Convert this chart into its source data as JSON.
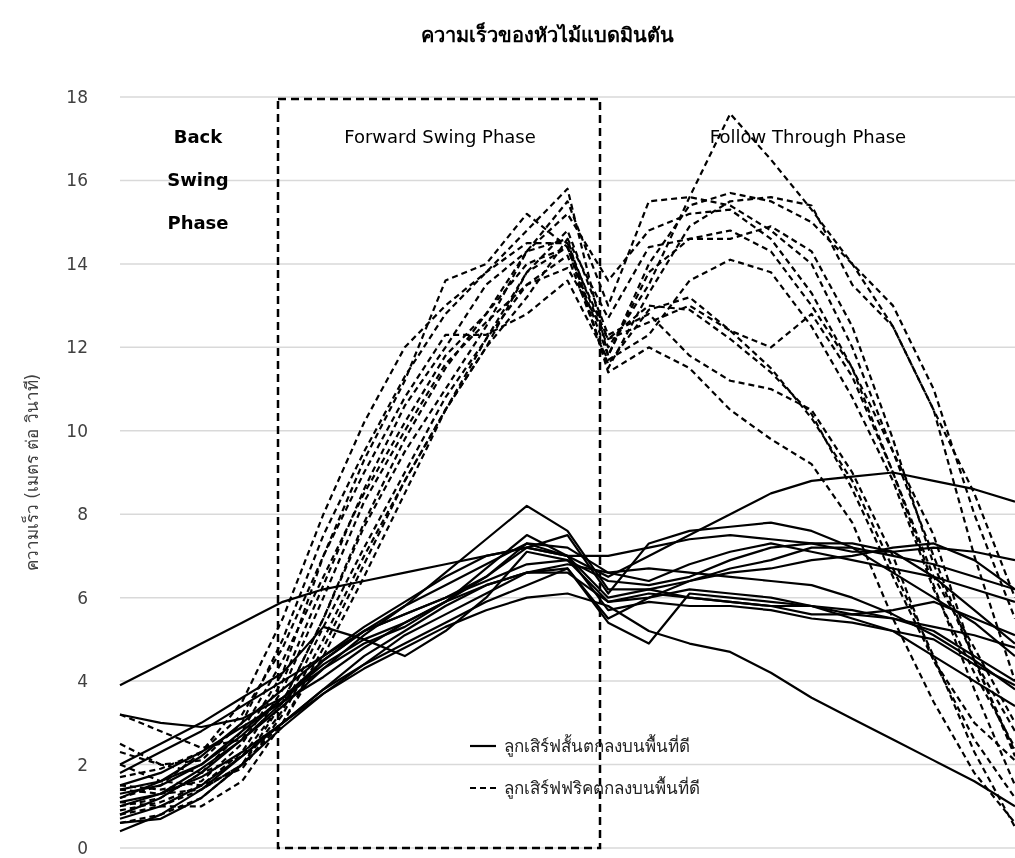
{
  "chart_data": {
    "type": "line",
    "title": "ความเร็วของหัวไม้แบดมินตัน",
    "ylabel": "ความเร็ว (เมตร ต่อ วินาที)",
    "categories": [
      null,
      null,
      null,
      null,
      null,
      null,
      null,
      null,
      null,
      null,
      null,
      null,
      null,
      null,
      null,
      null,
      null,
      null,
      null,
      null,
      null,
      null,
      null
    ],
    "ylim": [
      0,
      18
    ],
    "yticks": [
      0,
      2,
      4,
      6,
      8,
      10,
      12,
      14,
      16,
      18
    ],
    "grid": "y",
    "tick_labels": "y",
    "legend": "bottom",
    "marker": "none",
    "annotations": [
      "Back Swing Phase",
      "Forward Swing Phase",
      "Follow Through Phase"
    ],
    "series": [
      {
        "name": "ลูกเสิร์ฟสั้นตกลงบนพื้นที่ดี",
        "color": "#000000",
        "line_style": "solid",
        "values": [
          3.9,
          4.4,
          4.9,
          5.4,
          5.9,
          6.2,
          6.4,
          6.6,
          6.8,
          7.0,
          7.2,
          7.0,
          7.0,
          7.2,
          7.4,
          7.5,
          7.4,
          7.3,
          7.1,
          7.1,
          7.2,
          7.1,
          6.9
        ]
      },
      {
        "color": "#000000",
        "line_style": "solid",
        "values": [
          1.2,
          1.6,
          2.2,
          3.0,
          3.8,
          4.6,
          5.3,
          5.9,
          6.5,
          7.0,
          7.2,
          7.0,
          6.5,
          7.0,
          7.5,
          8.0,
          8.5,
          8.8,
          8.9,
          9.0,
          8.8,
          8.6,
          8.3
        ]
      },
      {
        "color": "#000000",
        "line_style": "solid",
        "values": [
          0.8,
          1.2,
          1.8,
          2.6,
          3.4,
          4.3,
          5.1,
          5.8,
          6.6,
          7.4,
          8.2,
          7.6,
          6.2,
          6.2,
          6.4,
          6.7,
          6.9,
          7.2,
          7.2,
          7.0,
          6.8,
          6.5,
          6.2
        ]
      },
      {
        "color": "#000000",
        "line_style": "solid",
        "values": [
          0.6,
          0.7,
          1.2,
          2.0,
          2.9,
          3.7,
          4.3,
          4.8,
          5.3,
          5.7,
          6.0,
          6.1,
          5.8,
          5.2,
          4.9,
          4.7,
          4.2,
          3.6,
          3.1,
          2.6,
          2.1,
          1.6,
          1.0
        ]
      },
      {
        "color": "#000000",
        "line_style": "solid",
        "values": [
          1.4,
          1.6,
          2.0,
          2.7,
          3.6,
          4.5,
          5.2,
          5.8,
          6.3,
          6.8,
          7.3,
          7.0,
          6.0,
          6.2,
          6.0,
          5.9,
          5.8,
          5.6,
          5.6,
          5.5,
          5.3,
          5.1,
          4.8
        ]
      },
      {
        "color": "#000000",
        "line_style": "solid",
        "values": [
          0.4,
          0.8,
          1.4,
          2.2,
          3.0,
          3.8,
          4.4,
          4.9,
          5.4,
          5.9,
          6.3,
          6.7,
          5.4,
          4.9,
          6.1,
          6.0,
          5.9,
          5.8,
          5.7,
          5.5,
          5.2,
          4.6,
          4.0
        ]
      },
      {
        "color": "#000000",
        "line_style": "solid",
        "values": [
          1.0,
          1.3,
          1.9,
          2.6,
          3.5,
          4.5,
          5.2,
          5.6,
          6.0,
          6.4,
          6.8,
          6.9,
          6.4,
          6.3,
          6.5,
          6.9,
          7.2,
          7.3,
          7.3,
          7.1,
          6.5,
          5.7,
          4.9
        ]
      },
      {
        "color": "#000000",
        "line_style": "solid",
        "values": [
          1.8,
          2.3,
          2.8,
          3.4,
          4.0,
          4.6,
          5.2,
          5.6,
          6.0,
          6.5,
          7.2,
          7.5,
          6.1,
          7.3,
          7.6,
          7.7,
          7.8,
          7.6,
          7.2,
          6.6,
          6.0,
          5.4,
          4.6
        ]
      },
      {
        "color": "#000000",
        "line_style": "solid",
        "values": [
          2.0,
          2.5,
          3.0,
          3.6,
          4.2,
          5.3,
          5.0,
          4.6,
          5.2,
          6.0,
          7.1,
          6.9,
          5.9,
          6.0,
          6.2,
          6.1,
          6.0,
          5.8,
          5.5,
          5.2,
          4.6,
          4.0,
          3.4
        ]
      },
      {
        "color": "#000000",
        "line_style": "solid",
        "values": [
          1.3,
          1.5,
          2.0,
          2.8,
          3.6,
          4.3,
          4.9,
          5.3,
          5.9,
          6.7,
          7.5,
          7.0,
          5.7,
          5.9,
          5.8,
          5.8,
          5.7,
          5.5,
          5.4,
          5.2,
          5.0,
          4.4,
          3.9
        ]
      },
      {
        "color": "#000000",
        "line_style": "solid",
        "values": [
          0.7,
          1.0,
          1.5,
          2.2,
          3.0,
          3.8,
          4.6,
          5.2,
          5.8,
          6.3,
          6.6,
          6.8,
          6.6,
          6.7,
          6.6,
          6.5,
          6.4,
          6.3,
          6.0,
          5.6,
          5.1,
          4.5,
          3.8
        ]
      },
      {
        "color": "#000000",
        "line_style": "solid",
        "values": [
          1.5,
          1.8,
          2.3,
          2.9,
          3.5,
          4.1,
          4.8,
          5.4,
          5.9,
          6.3,
          6.6,
          6.6,
          5.9,
          6.1,
          6.0,
          5.9,
          5.8,
          5.8,
          5.6,
          5.7,
          5.9,
          5.5,
          5.1
        ]
      },
      {
        "color": "#000000",
        "line_style": "solid",
        "values": [
          3.2,
          3.0,
          2.9,
          3.1,
          3.6,
          4.4,
          5.0,
          5.4,
          5.9,
          6.5,
          7.3,
          7.2,
          6.6,
          6.4,
          6.8,
          7.1,
          7.3,
          7.1,
          6.9,
          6.7,
          6.5,
          6.2,
          5.9
        ]
      },
      {
        "color": "#000000",
        "line_style": "solid",
        "values": [
          1.1,
          1.3,
          1.7,
          2.3,
          3.0,
          3.7,
          4.4,
          5.1,
          5.6,
          6.1,
          6.6,
          6.7,
          5.5,
          6.0,
          6.4,
          6.6,
          6.7,
          6.9,
          7.0,
          7.2,
          7.3,
          6.9,
          6.2
        ]
      },
      {
        "name": "ลูกเสิร์ฟฟริคตกลงบนพื้นที่ดี",
        "color": "#000000",
        "line_style": "dashed",
        "values": [
          1.2,
          1.5,
          2.3,
          3.5,
          5.5,
          8.0,
          10.2,
          12.0,
          13.0,
          13.8,
          14.5,
          14.5,
          12.0,
          13.5,
          15.6,
          17.6,
          16.5,
          15.3,
          14.0,
          12.5,
          10.5,
          7.0,
          4.0
        ]
      },
      {
        "color": "#000000",
        "line_style": "dashed",
        "values": [
          2.5,
          2.0,
          2.1,
          3.0,
          5.0,
          7.5,
          9.5,
          11.3,
          12.8,
          13.8,
          14.8,
          15.8,
          11.8,
          14.0,
          15.4,
          15.7,
          15.5,
          15.0,
          14.0,
          13.0,
          11.0,
          8.0,
          5.5
        ]
      },
      {
        "color": "#000000",
        "line_style": "dashed",
        "values": [
          3.2,
          2.8,
          2.4,
          2.6,
          4.2,
          7.0,
          9.3,
          11.2,
          13.6,
          14.0,
          15.2,
          14.4,
          11.5,
          13.3,
          14.9,
          15.5,
          15.6,
          15.4,
          13.5,
          12.5,
          10.5,
          8.5,
          6.0
        ]
      },
      {
        "color": "#000000",
        "line_style": "dashed",
        "values": [
          1.0,
          1.2,
          1.8,
          2.8,
          4.5,
          6.5,
          8.5,
          10.2,
          11.8,
          12.8,
          14.3,
          14.6,
          12.7,
          14.4,
          14.6,
          14.8,
          14.3,
          13.0,
          11.5,
          9.5,
          7.5,
          4.5,
          2.2
        ]
      },
      {
        "color": "#000000",
        "line_style": "dashed",
        "values": [
          1.7,
          1.9,
          2.3,
          3.2,
          4.8,
          7.0,
          9.0,
          10.8,
          12.3,
          12.3,
          12.8,
          13.6,
          11.7,
          12.3,
          13.6,
          14.1,
          13.8,
          12.5,
          10.8,
          8.8,
          6.2,
          4.2,
          2.4
        ]
      },
      {
        "color": "#000000",
        "line_style": "dashed",
        "values": [
          0.6,
          0.8,
          1.2,
          2.0,
          3.5,
          5.5,
          7.8,
          9.8,
          11.5,
          12.8,
          14.0,
          14.4,
          12.2,
          12.6,
          13.0,
          12.4,
          12.0,
          12.8,
          11.3,
          9.0,
          6.3,
          3.8,
          1.5
        ]
      },
      {
        "color": "#000000",
        "line_style": "dashed",
        "values": [
          1.4,
          1.3,
          1.4,
          2.0,
          3.3,
          5.3,
          7.2,
          9.0,
          10.8,
          12.2,
          13.8,
          14.8,
          12.3,
          12.8,
          11.8,
          11.2,
          11.0,
          10.5,
          9.0,
          7.0,
          4.5,
          2.6,
          1.2
        ]
      },
      {
        "color": "#000000",
        "line_style": "dashed",
        "values": [
          2.3,
          2.0,
          1.8,
          2.2,
          3.5,
          5.5,
          7.7,
          9.5,
          11.0,
          12.5,
          14.3,
          15.5,
          13.0,
          15.5,
          15.6,
          15.4,
          14.8,
          14.0,
          12.0,
          9.5,
          7.0,
          4.5,
          2.3
        ]
      },
      {
        "color": "#000000",
        "line_style": "dashed",
        "values": [
          1.1,
          1.0,
          1.0,
          1.6,
          3.0,
          4.8,
          6.8,
          8.8,
          10.5,
          12.0,
          13.8,
          14.4,
          11.8,
          13.8,
          14.6,
          14.6,
          14.9,
          14.3,
          12.5,
          9.8,
          6.8,
          4.5,
          2.8
        ]
      },
      {
        "color": "#000000",
        "line_style": "dashed",
        "values": [
          0.9,
          1.1,
          1.5,
          2.3,
          3.8,
          6.0,
          8.3,
          10.0,
          11.6,
          12.6,
          13.5,
          14.2,
          11.6,
          12.9,
          13.2,
          12.4,
          11.5,
          10.3,
          8.8,
          6.7,
          4.6,
          2.3,
          0.5
        ]
      },
      {
        "color": "#000000",
        "line_style": "dashed",
        "values": [
          2.0,
          1.6,
          1.5,
          1.9,
          3.2,
          5.0,
          7.0,
          8.8,
          10.5,
          12.2,
          13.5,
          13.9,
          12.2,
          13.0,
          12.9,
          12.2,
          11.4,
          10.4,
          8.6,
          6.5,
          4.5,
          3.0,
          2.1
        ]
      },
      {
        "color": "#000000",
        "line_style": "dashed",
        "values": [
          1.5,
          1.4,
          1.6,
          2.5,
          4.0,
          6.3,
          8.6,
          10.6,
          12.0,
          13.5,
          14.3,
          15.2,
          13.6,
          14.8,
          15.2,
          15.3,
          14.6,
          13.3,
          11.5,
          9.0,
          6.5,
          4.8,
          3.0
        ]
      },
      {
        "color": "#000000",
        "line_style": "dashed",
        "values": [
          0.8,
          1.0,
          1.4,
          2.0,
          3.0,
          4.6,
          6.5,
          8.5,
          10.5,
          12.0,
          13.2,
          14.6,
          11.4,
          12.0,
          11.5,
          10.5,
          9.8,
          9.2,
          7.8,
          5.5,
          3.5,
          1.8,
          0.6
        ]
      }
    ]
  }
}
